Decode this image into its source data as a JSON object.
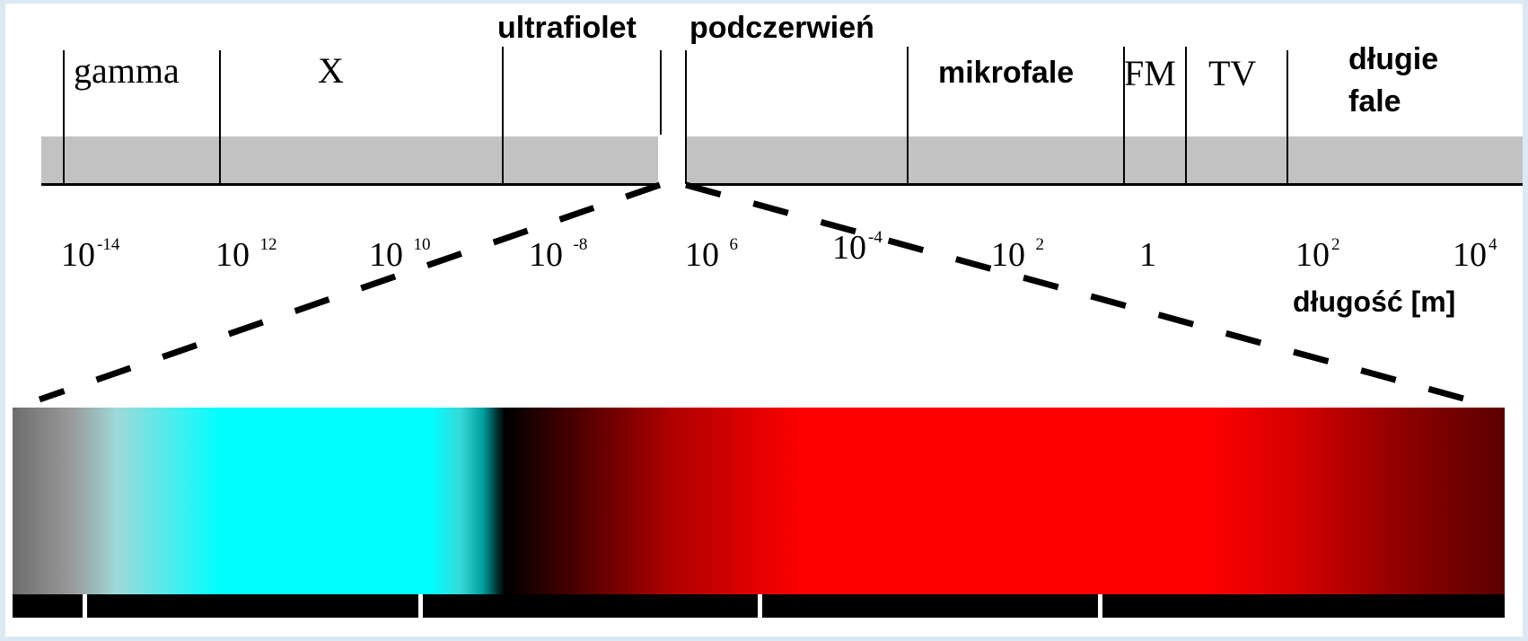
{
  "bands": {
    "gamma": "gamma",
    "x": "X",
    "ultraviolet": "ultrafiolet",
    "infrared": "podczerwień",
    "microwaves": "mikrofale",
    "fm": "FM",
    "tv": "TV",
    "long_waves_line1": "długie",
    "long_waves_line2": "fale"
  },
  "scale": [
    {
      "base": "10",
      "exp": "-14"
    },
    {
      "base": "10 ",
      "exp": "12"
    },
    {
      "base": "10 ",
      "exp": "10"
    },
    {
      "base": "10 ",
      "exp": "-8"
    },
    {
      "base": "10 ",
      "exp": "6"
    },
    {
      "base": "10",
      "exp": "-4"
    },
    {
      "base": "10 ",
      "exp": "2"
    },
    {
      "base": "1",
      "exp": ""
    },
    {
      "base": "10",
      "exp": "2"
    },
    {
      "base": "10",
      "exp": "4"
    }
  ],
  "unit_label": "długość [m]",
  "colors": {
    "background": "#dde9f2",
    "band_bar": "#c2c2c2",
    "cyan": "#00ffff",
    "red": "#ff0000"
  }
}
